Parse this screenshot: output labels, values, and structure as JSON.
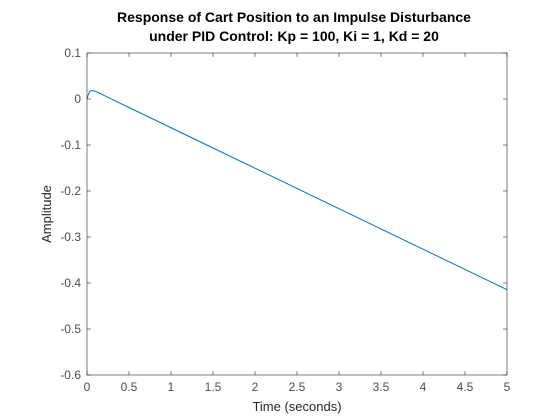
{
  "chart_data": {
    "type": "line",
    "title": [
      "Response of Cart Position to an Impulse Disturbance",
      "under PID Control: Kp = 100, Ki = 1, Kd = 20"
    ],
    "xlabel": "Time (seconds)",
    "ylabel": "Amplitude",
    "xlim": [
      0,
      5
    ],
    "ylim": [
      -0.6,
      0.1
    ],
    "xticks": [
      0,
      0.5,
      1,
      1.5,
      2,
      2.5,
      3,
      3.5,
      4,
      4.5,
      5
    ],
    "xtick_labels": [
      "0",
      "0.5",
      "1",
      "1.5",
      "2",
      "2.5",
      "3",
      "3.5",
      "4",
      "4.5",
      "5"
    ],
    "yticks": [
      0.1,
      0,
      -0.1,
      -0.2,
      -0.3,
      -0.4,
      -0.5,
      -0.6
    ],
    "ytick_labels": [
      "0.1",
      "0",
      "-0.1",
      "-0.2",
      "-0.3",
      "-0.4",
      "-0.5",
      "-0.6"
    ],
    "grid": false,
    "series": [
      {
        "color": "#0072bd",
        "x": [
          0,
          0.02,
          0.04,
          0.06,
          0.08,
          0.1,
          0.15,
          0.2,
          0.5,
          1,
          1.5,
          2,
          2.5,
          3,
          3.5,
          4,
          4.5,
          5
        ],
        "y": [
          0,
          0.012,
          0.0175,
          0.0185,
          0.018,
          0.0168,
          0.0125,
          0.008,
          -0.0185,
          -0.0625,
          -0.1065,
          -0.1505,
          -0.1945,
          -0.2385,
          -0.2825,
          -0.3265,
          -0.3705,
          -0.4145
        ]
      }
    ]
  }
}
